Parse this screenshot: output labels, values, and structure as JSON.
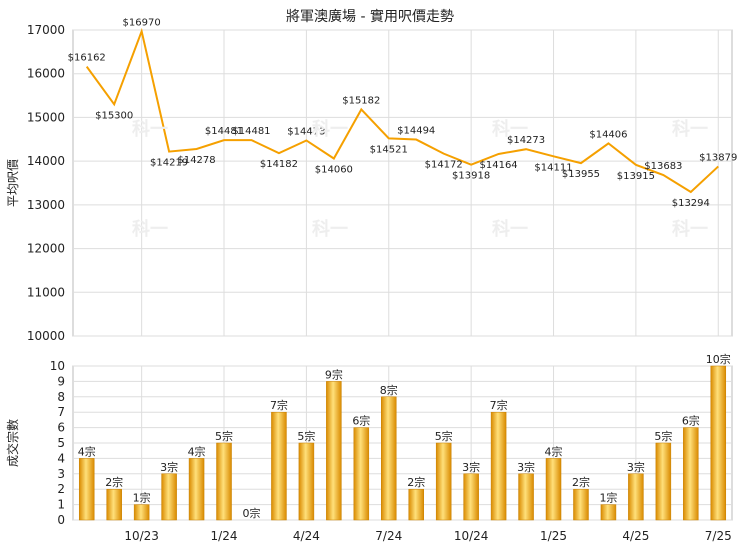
{
  "title": "將軍澳廣場 - 實用呎價走勢",
  "watermark": "科一",
  "chart_data": [
    {
      "type": "line",
      "ylabel": "平均呎價",
      "ylim": [
        10000,
        17000
      ],
      "yticks": [
        10000,
        11000,
        12000,
        13000,
        14000,
        15000,
        16000,
        17000
      ],
      "color": "#f5a000",
      "label_prefix": "$",
      "x": [
        "2023-08",
        "2023-09",
        "2023-10",
        "2023-11",
        "2023-12",
        "2024-01",
        "2024-02",
        "2024-03",
        "2024-04",
        "2024-05",
        "2024-06",
        "2024-07",
        "2024-08",
        "2024-09",
        "2024-10",
        "2024-11",
        "2024-12",
        "2025-01",
        "2025-02",
        "2025-03",
        "2025-04",
        "2025-05",
        "2025-06",
        "2025-07"
      ],
      "values": [
        16162,
        15300,
        16970,
        14219,
        14278,
        14481,
        14481,
        14182,
        14473,
        14060,
        15182,
        14521,
        14494,
        14172,
        13918,
        14164,
        14273,
        14111,
        13955,
        14406,
        13915,
        13683,
        13294,
        13879
      ]
    },
    {
      "type": "bar",
      "ylabel": "成交宗數",
      "ylim": [
        0,
        10
      ],
      "yticks": [
        0,
        1,
        2,
        3,
        4,
        5,
        6,
        7,
        8,
        9,
        10
      ],
      "bar_colors": [
        "#d98a00",
        "#ffe07a"
      ],
      "label_suffix": "宗",
      "x": [
        "2023-08",
        "2023-09",
        "2023-10",
        "2023-11",
        "2023-12",
        "2024-01",
        "2024-02",
        "2024-03",
        "2024-04",
        "2024-05",
        "2024-06",
        "2024-07",
        "2024-08",
        "2024-09",
        "2024-10",
        "2024-11",
        "2024-12",
        "2025-01",
        "2025-02",
        "2025-03",
        "2025-04",
        "2025-05",
        "2025-06",
        "2025-07"
      ],
      "values": [
        4,
        2,
        1,
        3,
        4,
        5,
        0,
        7,
        5,
        9,
        6,
        8,
        2,
        5,
        3,
        7,
        3,
        4,
        2,
        1,
        3,
        5,
        6,
        10
      ],
      "xtick_labels": [
        {
          "index": 2,
          "label": "10/23"
        },
        {
          "index": 5,
          "label": "1/24"
        },
        {
          "index": 8,
          "label": "4/24"
        },
        {
          "index": 11,
          "label": "7/24"
        },
        {
          "index": 14,
          "label": "10/24"
        },
        {
          "index": 17,
          "label": "1/25"
        },
        {
          "index": 20,
          "label": "4/25"
        },
        {
          "index": 23,
          "label": "7/25"
        }
      ]
    }
  ]
}
